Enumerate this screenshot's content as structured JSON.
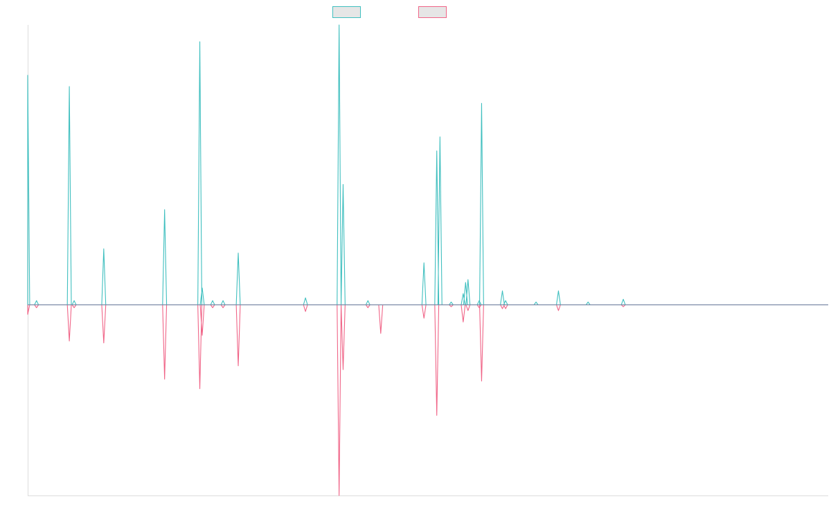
{
  "chart_data": {
    "type": "line",
    "title": "",
    "xlabel": "",
    "ylabel": "",
    "grid": false,
    "legend_position": "top-center",
    "ylim": [
      -100,
      100
    ],
    "colors": {
      "positive": "#3fbfbf",
      "negative": "#f06487",
      "axis": "#7a8aa6",
      "legend_fill": "#e6e6e6"
    },
    "series": [
      {
        "color": "#3fbfbf",
        "peaks": [
          [
            0.0,
            82
          ],
          [
            1.1,
            1.5
          ],
          [
            5.2,
            78
          ],
          [
            5.8,
            1.5
          ],
          [
            9.5,
            20
          ],
          [
            17.1,
            34
          ],
          [
            21.5,
            94
          ],
          [
            21.8,
            6
          ],
          [
            23.1,
            1.5
          ],
          [
            24.4,
            1.5
          ],
          [
            26.3,
            18.5
          ],
          [
            34.7,
            2.5
          ],
          [
            38.9,
            100
          ],
          [
            39.4,
            43
          ],
          [
            42.5,
            1.5
          ],
          [
            49.5,
            15
          ],
          [
            51.1,
            55
          ],
          [
            51.5,
            60
          ],
          [
            52.9,
            1
          ],
          [
            54.4,
            4
          ],
          [
            54.7,
            8
          ],
          [
            55.0,
            9
          ],
          [
            56.4,
            1.5
          ],
          [
            56.7,
            72
          ],
          [
            59.3,
            5
          ],
          [
            59.7,
            1.5
          ],
          [
            63.5,
            1
          ],
          [
            66.3,
            5
          ],
          [
            70.0,
            1
          ],
          [
            74.4,
            2
          ]
        ]
      },
      {
        "color": "#f06487",
        "peaks": [
          [
            0.0,
            -5
          ],
          [
            1.1,
            -1.5
          ],
          [
            5.2,
            -19
          ],
          [
            5.8,
            -1.5
          ],
          [
            9.5,
            -20
          ],
          [
            17.1,
            -39
          ],
          [
            21.5,
            -44
          ],
          [
            21.8,
            -16
          ],
          [
            23.1,
            -1.5
          ],
          [
            24.4,
            -1.5
          ],
          [
            26.3,
            -32
          ],
          [
            34.7,
            -3.5
          ],
          [
            38.9,
            -100
          ],
          [
            39.4,
            -34
          ],
          [
            42.5,
            -1.5
          ],
          [
            44.1,
            -15
          ],
          [
            49.5,
            -7
          ],
          [
            51.1,
            -58
          ],
          [
            52.9,
            -1
          ],
          [
            54.4,
            -9
          ],
          [
            55.0,
            -3
          ],
          [
            56.4,
            -1.5
          ],
          [
            56.7,
            -40
          ],
          [
            59.3,
            -2
          ],
          [
            59.7,
            -2
          ],
          [
            66.3,
            -3
          ],
          [
            74.4,
            -1
          ]
        ]
      }
    ]
  }
}
